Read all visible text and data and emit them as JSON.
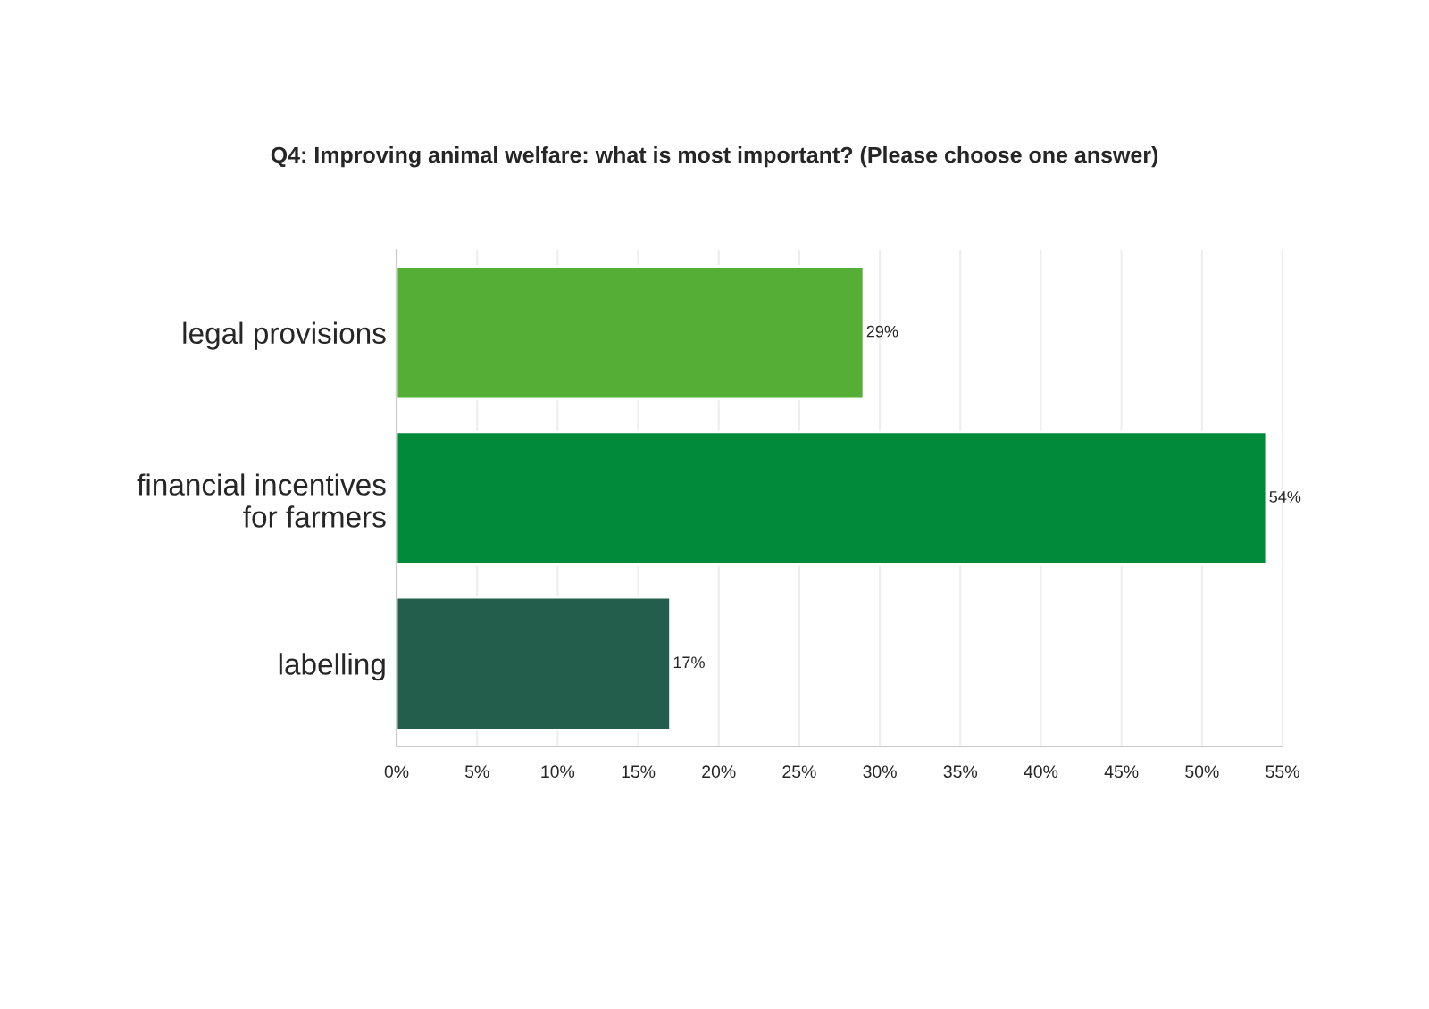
{
  "chart_data": {
    "type": "bar",
    "orientation": "horizontal",
    "title": "Q4: Improving animal welfare: what is most important? (Please choose one answer)",
    "categories": [
      "legal provisions",
      "financial incentives\nfor farmers",
      "labelling"
    ],
    "values": [
      29,
      54,
      17
    ],
    "colors": [
      "#55ae35",
      "#008a3a",
      "#235e4c"
    ],
    "value_labels": [
      "29%",
      "54%",
      "17%"
    ],
    "xlim": [
      0,
      55
    ],
    "xticks": [
      {
        "value": 0,
        "label": "0%"
      },
      {
        "value": 5,
        "label": "5%"
      },
      {
        "value": 10,
        "label": "10%"
      },
      {
        "value": 15,
        "label": "15%"
      },
      {
        "value": 20,
        "label": "20%"
      },
      {
        "value": 25,
        "label": "25%"
      },
      {
        "value": 30,
        "label": "30%"
      },
      {
        "value": 35,
        "label": "35%"
      },
      {
        "value": 40,
        "label": "40%"
      },
      {
        "value": 45,
        "label": "45%"
      },
      {
        "value": 50,
        "label": "50%"
      },
      {
        "value": 55,
        "label": "55%"
      }
    ],
    "grid": "x",
    "legend": false
  }
}
